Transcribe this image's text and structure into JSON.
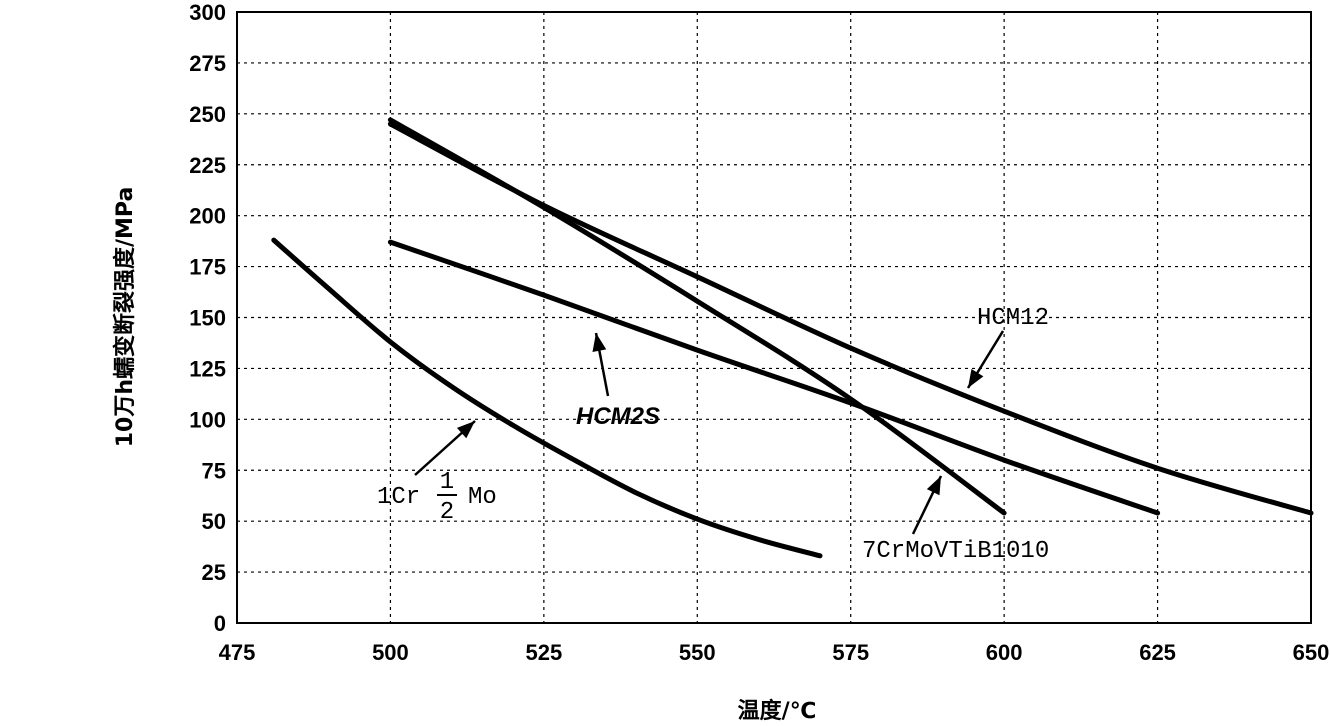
{
  "chart_data": {
    "type": "line",
    "xlabel": "温度/℃",
    "ylabel": "10万h蠕变断裂强度/MPa",
    "xlim": [
      475,
      650
    ],
    "ylim": [
      0,
      300
    ],
    "x_ticks": [
      "475",
      "500",
      "525",
      "550",
      "575",
      "600",
      "625",
      "650"
    ],
    "y_ticks": [
      "0",
      "25",
      "50",
      "75",
      "100",
      "125",
      "150",
      "175",
      "200",
      "225",
      "250",
      "275",
      "300"
    ],
    "grid": true,
    "series": [
      {
        "name": "1Cr 1/2 Mo",
        "label_parts": {
          "before": "1Cr",
          "num": "1",
          "den": "2",
          "after": "Mo"
        },
        "x": [
          481,
          490,
          500,
          510,
          520,
          530,
          540,
          550,
          560,
          570
        ],
        "y": [
          188,
          164,
          138,
          116,
          97,
          80,
          64,
          51,
          41,
          33
        ]
      },
      {
        "name": "HCM2S",
        "x": [
          500,
          525,
          550,
          575,
          600,
          625
        ],
        "y": [
          187,
          161,
          134,
          108,
          80,
          54
        ]
      },
      {
        "name": "7CrMoVTiB1010",
        "x": [
          500,
          525,
          550,
          575,
          600
        ],
        "y": [
          247,
          204,
          158,
          110,
          54
        ]
      },
      {
        "name": "HCM12",
        "x": [
          500,
          525,
          550,
          575,
          600,
          625,
          650
        ],
        "y": [
          245,
          205,
          170,
          135,
          104,
          76,
          54
        ]
      }
    ]
  }
}
